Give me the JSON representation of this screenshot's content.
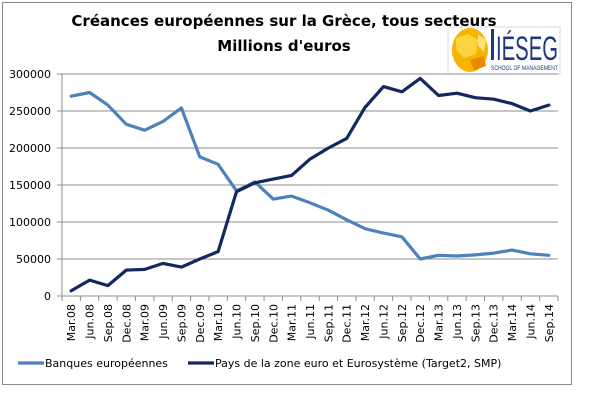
{
  "chart_data": {
    "type": "line",
    "title": "Créances européennes sur la Grèce, tous secteurs",
    "subtitle": "Millions d'euros",
    "xlabel": "",
    "ylabel": "",
    "ylim": [
      0,
      300000
    ],
    "yticks": [
      0,
      50000,
      100000,
      150000,
      200000,
      250000,
      300000
    ],
    "ytick_labels": [
      "0",
      "50000",
      "100000",
      "150000",
      "200000",
      "250000",
      "300000"
    ],
    "grid": true,
    "legend_position": "bottom",
    "categories": [
      "Mar.08",
      "Jun.08",
      "Sep.08",
      "Dec.08",
      "Mar.09",
      "Jun.09",
      "Sep.09",
      "Dec.09",
      "Mar.10",
      "Jun.10",
      "Sep.10",
      "Dec.10",
      "Mar.11",
      "Jun.11",
      "Sep.11",
      "Dec.11",
      "Mar.12",
      "Jun.12",
      "Sep.12",
      "Dec.12",
      "Mar.13",
      "Jun.13",
      "Sep.13",
      "Dec.13",
      "Mar.14",
      "Jun.14",
      "Sep.14"
    ],
    "series": [
      {
        "name": "Banques européennes",
        "color": "#4F81BD",
        "values": [
          270000,
          275000,
          258000,
          232000,
          224000,
          236000,
          254000,
          188000,
          178000,
          142000,
          154000,
          131000,
          135000,
          126000,
          116000,
          103000,
          91000,
          85000,
          80000,
          50000,
          55000,
          54000,
          55500,
          58000,
          62000,
          57000,
          55000
        ]
      },
      {
        "name": "Pays de la zone euro et Eurosystème (Target2, SMP)",
        "color": "#12295E",
        "values": [
          7000,
          21500,
          14000,
          35000,
          36000,
          44000,
          39000,
          50000,
          60000,
          141000,
          153000,
          158000,
          163000,
          185000,
          200000,
          213000,
          255000,
          283000,
          276000,
          294000,
          271000,
          274000,
          268000,
          266000,
          260000,
          250000,
          258000
        ]
      }
    ]
  },
  "logo": {
    "name": "IÉSEG",
    "tagline": "SCHOOL OF MANAGEMENT"
  },
  "colors": {
    "gridline": "#8c8c8c",
    "axis": "#8c8c8c",
    "logo_globe": "#F5A800"
  }
}
